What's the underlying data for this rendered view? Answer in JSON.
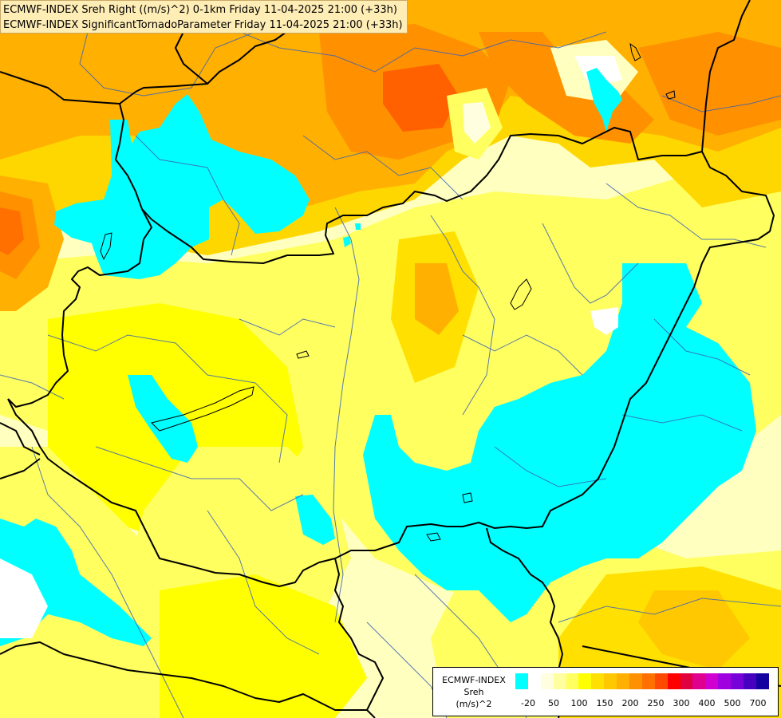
{
  "header": {
    "line1": "ECMWF-INDEX Sreh Right ((m/s)^2) 0-1km Friday 11-04-2025 21:00 (+33h)",
    "line2": "ECMWF-INDEX SignificantTornadoParameter Friday 11-04-2025 21:00 (+33h)"
  },
  "legend": {
    "title_line1": "ECMWF-INDEX",
    "title_line2": "Sreh",
    "title_line3": "(m/s)^2",
    "ticks": [
      "-20",
      "50",
      "100",
      "150",
      "200",
      "250",
      "300",
      "400",
      "500",
      "700"
    ],
    "colors": [
      "#00ffff",
      "#ffffff",
      "#ffffe0",
      "#ffffa0",
      "#ffff60",
      "#ffff00",
      "#ffe000",
      "#ffc800",
      "#ffb000",
      "#ff9000",
      "#ff7000",
      "#ff4800",
      "#ff0000",
      "#e00040",
      "#e00090",
      "#d000d0",
      "#a000e0",
      "#7800d8",
      "#4800c0",
      "#1400a0"
    ]
  },
  "colors": {
    "cyan_negative_helicity": "#00ffff",
    "light_yellow": "#ffffc0",
    "yellow": "#ffff00",
    "gold": "#ffd700",
    "orange": "#ffaa00",
    "dark_orange": "#ff7a00",
    "red_orange": "#ff5000",
    "country_border": "#000000",
    "region_border": "#3c64b4"
  }
}
